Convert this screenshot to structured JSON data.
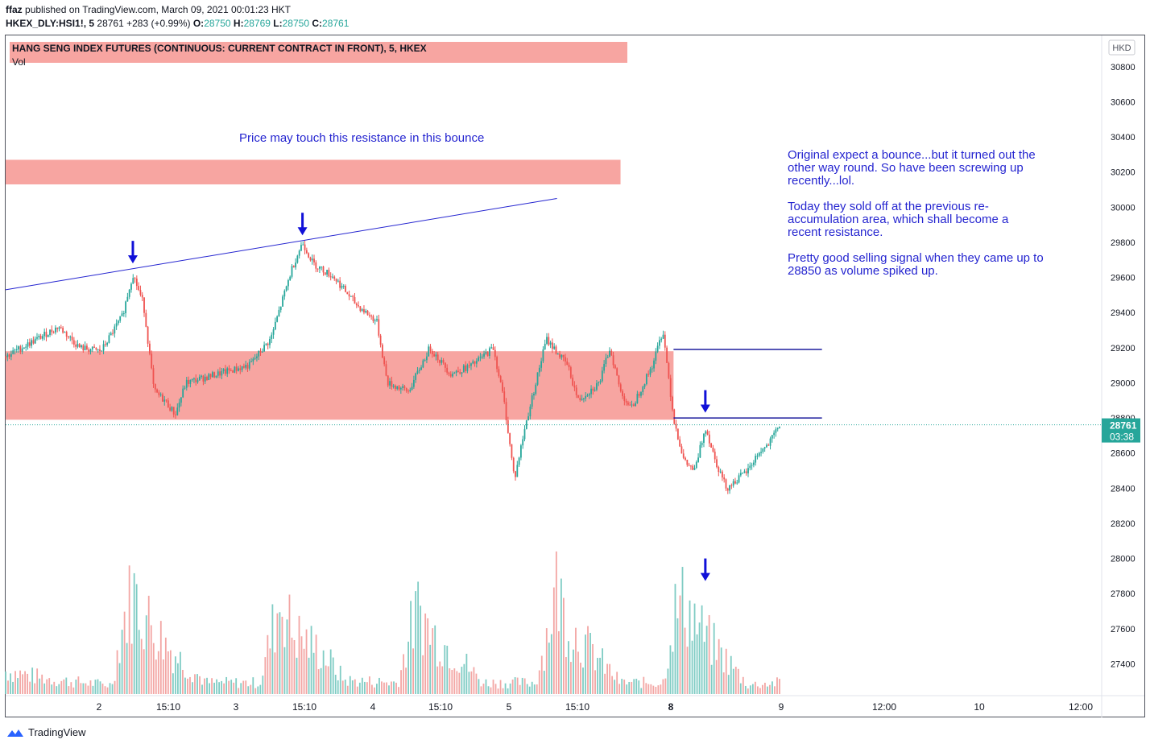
{
  "header": {
    "author": "ffaz",
    "published": "published on TradingView.com, March 09, 2021 00:01:23 HKT",
    "symbol": "HKEX_DLY:HSI1!, 5",
    "last": "28761",
    "change": "+283 (+0.99%)",
    "o_label": "O:",
    "o": "28750",
    "h_label": "H:",
    "h": "28769",
    "l_label": "L:",
    "l": "28750",
    "c_label": "C:",
    "c": "28761"
  },
  "legend": {
    "title": "HANG SENG INDEX FUTURES (CONTINUOUS: CURRENT CONTRACT IN FRONT), 5, HKEX",
    "vol": "Vol"
  },
  "annotations": {
    "resistance_note": "Price may touch this resistance in this bounce",
    "commentary": [
      "Original expect a bounce...but it turned out the",
      "other way round. So have been screwing up",
      "recently...lol.",
      "",
      "Today they sold off at the previous re-",
      "accumulation area, which shall become a",
      "recent resistance.",
      "",
      "Pretty good selling signal when they came up to",
      "28850 as volume spiked up."
    ]
  },
  "footer": {
    "brand": "TradingView"
  },
  "colors": {
    "up": "#26a69a",
    "down": "#ef5350",
    "zone": "#f7a5a1",
    "annotation": "#2525d0"
  },
  "chart_data": {
    "type": "candlestick",
    "currency": "HKD",
    "y_ticks": [
      27400,
      27600,
      27800,
      28000,
      28200,
      28400,
      28600,
      28800,
      29000,
      29200,
      29400,
      29600,
      29800,
      30000,
      30200,
      30400,
      30600,
      30800
    ],
    "ylim": [
      27200,
      30900
    ],
    "last_price": {
      "value": 28761,
      "label": "28761",
      "countdown": "03:38"
    },
    "x_ticks": [
      "2",
      "15:10",
      "3",
      "15:10",
      "4",
      "15:10",
      "5",
      "15:10",
      "8",
      "9",
      "12:00",
      "10",
      "12:00"
    ],
    "price_path": [
      [
        0,
        29150
      ],
      [
        3,
        29250
      ],
      [
        5,
        29320
      ],
      [
        7,
        29200
      ],
      [
        9,
        29180
      ],
      [
        11,
        29380
      ],
      [
        12,
        29620
      ],
      [
        13,
        29450
      ],
      [
        14,
        28950
      ],
      [
        15,
        28900
      ],
      [
        16,
        28820
      ],
      [
        17,
        29000
      ],
      [
        20,
        29050
      ],
      [
        23,
        29100
      ],
      [
        25,
        29250
      ],
      [
        27,
        29650
      ],
      [
        28,
        29800
      ],
      [
        29,
        29680
      ],
      [
        31,
        29600
      ],
      [
        33,
        29450
      ],
      [
        35,
        29350
      ],
      [
        36,
        29000
      ],
      [
        38,
        28950
      ],
      [
        40,
        29200
      ],
      [
        42,
        29050
      ],
      [
        44,
        29100
      ],
      [
        46,
        29200
      ],
      [
        47,
        28900
      ],
      [
        48,
        28450
      ],
      [
        49,
        28750
      ],
      [
        50,
        29000
      ],
      [
        51,
        29250
      ],
      [
        53,
        29100
      ],
      [
        54,
        28900
      ],
      [
        56,
        29000
      ],
      [
        57,
        29200
      ],
      [
        58,
        28950
      ],
      [
        59,
        28850
      ],
      [
        61,
        29100
      ],
      [
        62,
        29300
      ],
      [
        63,
        28800
      ],
      [
        64,
        28550
      ],
      [
        65,
        28500
      ],
      [
        66,
        28750
      ],
      [
        67,
        28550
      ],
      [
        68,
        28400
      ],
      [
        69,
        28450
      ],
      [
        70,
        28500
      ],
      [
        71,
        28600
      ],
      [
        72,
        28650
      ],
      [
        73,
        28761
      ]
    ],
    "volume_profile": [
      [
        0,
        0.2
      ],
      [
        5,
        0.12
      ],
      [
        10,
        0.08
      ],
      [
        11,
        0.6
      ],
      [
        12,
        0.9
      ],
      [
        13,
        0.7
      ],
      [
        15,
        0.45
      ],
      [
        17,
        0.25
      ],
      [
        19,
        0.1
      ],
      [
        24,
        0.1
      ],
      [
        25,
        0.5
      ],
      [
        26,
        0.85
      ],
      [
        27,
        0.55
      ],
      [
        30,
        0.35
      ],
      [
        32,
        0.12
      ],
      [
        37,
        0.1
      ],
      [
        38,
        0.5
      ],
      [
        39,
        0.75
      ],
      [
        40,
        0.55
      ],
      [
        43,
        0.3
      ],
      [
        45,
        0.1
      ],
      [
        50,
        0.1
      ],
      [
        51,
        0.5
      ],
      [
        52,
        0.95
      ],
      [
        53,
        0.6
      ],
      [
        56,
        0.3
      ],
      [
        58,
        0.1
      ],
      [
        62,
        0.1
      ],
      [
        63,
        0.7
      ],
      [
        64,
        0.8
      ],
      [
        66,
        0.5
      ],
      [
        68,
        0.3
      ],
      [
        70,
        0.08
      ],
      [
        73,
        0.1
      ]
    ],
    "zones": [
      {
        "from": 28790,
        "to": 29180,
        "x_start": 0,
        "x_end": 63
      },
      {
        "from": 30130,
        "to": 30270,
        "x_start": 0,
        "x_end": 58
      }
    ],
    "trendline": {
      "from": [
        0,
        29530
      ],
      "to": [
        52,
        30050
      ]
    },
    "horizontal_lines": [
      {
        "value": 29190,
        "x_start": 63,
        "x_end": 77
      },
      {
        "value": 28800,
        "x_start": 63,
        "x_end": 77
      }
    ],
    "price_arrows": [
      [
        12,
        29680
      ],
      [
        28,
        29840
      ],
      [
        66,
        28830
      ]
    ],
    "volume_arrows": [
      [
        66,
        0.72
      ]
    ]
  }
}
